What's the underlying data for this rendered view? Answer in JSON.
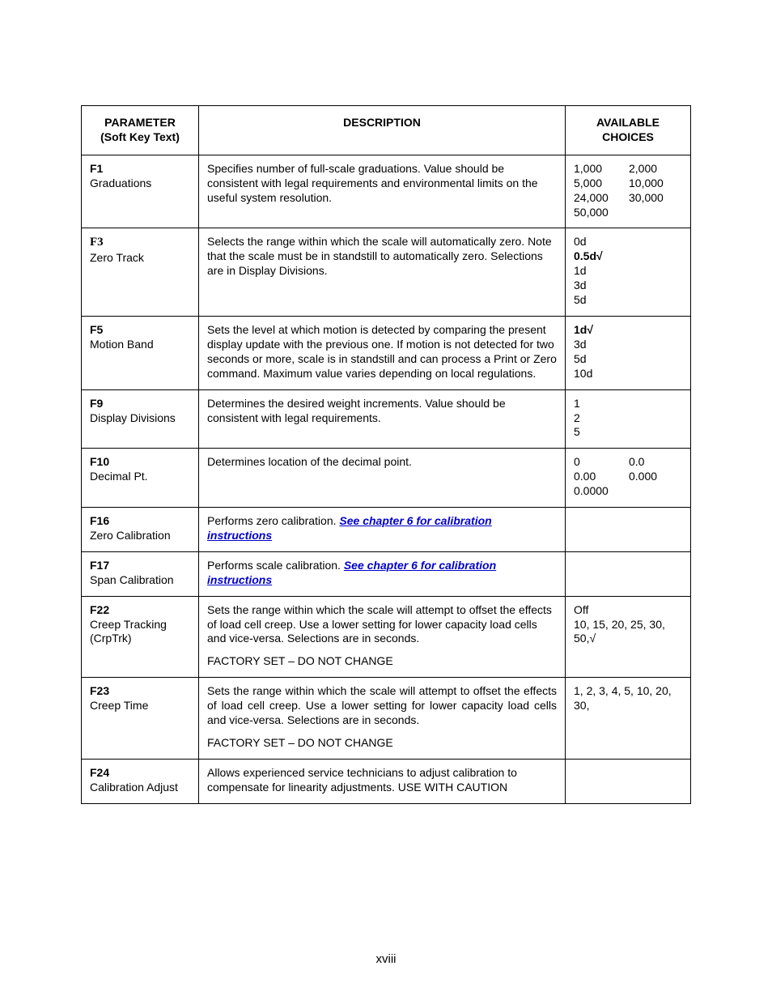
{
  "table": {
    "headers": {
      "param_line1": "PARAMETER",
      "param_line2": "(Soft Key Text)",
      "desc": "DESCRIPTION",
      "choices_line1": "AVAILABLE",
      "choices_line2": "CHOICES"
    },
    "rows": {
      "f1": {
        "code": "F1",
        "name": "Graduations",
        "desc": "Specifies number of full-scale graduations. Value should be consistent with legal requirements and environmental limits on the useful system resolution.",
        "choices_grid": [
          "1,000",
          "2,000",
          "5,000",
          "10,000",
          "24,000",
          "30,000",
          "50,000",
          ""
        ]
      },
      "f3": {
        "code": "F3",
        "name": " Zero Track",
        "desc": "Selects the range within which the scale will automatically zero. Note that the scale must be in standstill to automatically zero. Selections are in Display Divisions.",
        "choices_list": [
          "0d",
          "0.5d√",
          "1d",
          "3d",
          "5d"
        ],
        "bold_choice_index": 1
      },
      "f5": {
        "code": "F5",
        "name": "Motion Band",
        "desc": "Sets the level at which motion is detected by comparing the present display update with the previous one. If motion is not detected for two seconds or more, scale is in standstill and can process a Print or Zero command. Maximum value varies depending on local regulations.",
        "choices_list": [
          "1d√",
          "3d",
          "5d",
          "10d"
        ],
        "bold_choice_index": 0
      },
      "f9": {
        "code": "F9",
        "name": "Display Divisions",
        "desc": "Determines the desired weight increments. Value should be consistent with legal requirements.",
        "choices_list": [
          "1",
          "2",
          "5"
        ]
      },
      "f10": {
        "code": "F10",
        "name": "Decimal Pt.",
        "desc": "Determines location of the decimal point.",
        "choices_grid": [
          "0",
          "0.0",
          "0.00",
          "0.000",
          "0.0000",
          ""
        ]
      },
      "f16": {
        "code": "F16",
        "name": "Zero Calibration",
        "desc_prefix": "Performs zero calibration. ",
        "desc_link": "See chapter 6 for calibration instructions"
      },
      "f17": {
        "code": "F17",
        "name": "Span Calibration",
        "desc_prefix": "Performs scale calibration. ",
        "desc_link": "See chapter 6 for calibration instructions"
      },
      "f22": {
        "code": "F22",
        "name": "Creep Tracking (CrpTrk)",
        "desc1": "Sets the range within which the scale will attempt to offset the effects of load cell creep. Use a lower setting for lower capacity load cells and vice-versa. Selections are in seconds.",
        "desc2": "FACTORY SET – DO NOT CHANGE",
        "choices_list": [
          "Off",
          "10, 15, 20, 25, 30, 50,√"
        ]
      },
      "f23": {
        "code": "F23",
        "name": "Creep Time",
        "desc1": "Sets the range within which the scale will attempt to offset the effects of load cell creep. Use a lower setting for lower capacity load cells and vice-versa. Selections are in seconds.",
        "desc2": "FACTORY SET – DO NOT CHANGE",
        "choices_list": [
          "1, 2, 3, 4, 5, 10, 20, 30,"
        ]
      },
      "f24": {
        "code": "F24",
        "name": "Calibration Adjust",
        "desc": "Allows experienced service technicians to adjust calibration to compensate for linearity adjustments. USE WITH CAUTION"
      }
    }
  },
  "page_number": "xviii"
}
